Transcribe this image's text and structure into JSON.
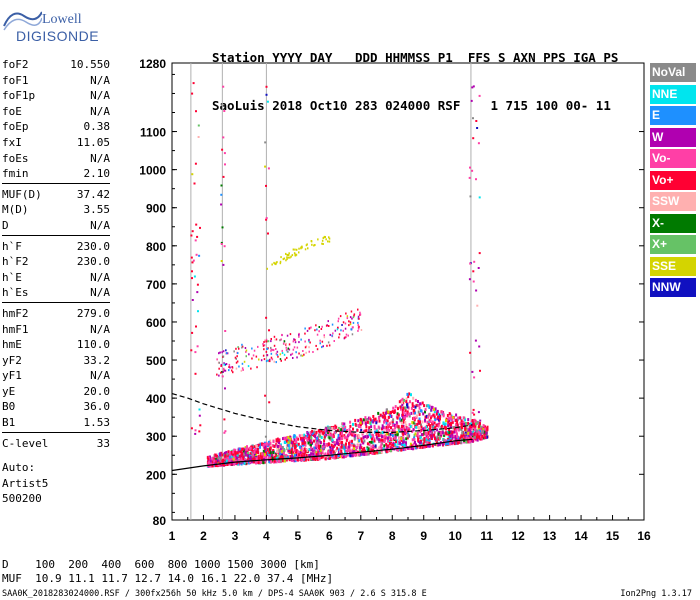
{
  "logo": {
    "line1": "Lowell",
    "line2": "DIGISONDE"
  },
  "header": {
    "line1": "Station YYYY DAY   DDD HHMMSS P1  FFS S AXN PPS IGA PS",
    "line2": "SaoLuis 2018 Oct10 283 024000 RSF    1 715 100 00- 11"
  },
  "params": {
    "groups": [
      [
        {
          "name": "foF2",
          "value": "10.550"
        },
        {
          "name": "foF1",
          "value": "N/A"
        },
        {
          "name": "foF1p",
          "value": "N/A"
        },
        {
          "name": "foE",
          "value": "N/A"
        },
        {
          "name": "foEp",
          "value": "0.38"
        },
        {
          "name": "fxI",
          "value": "11.05"
        },
        {
          "name": "foEs",
          "value": "N/A"
        },
        {
          "name": "fmin",
          "value": "2.10"
        }
      ],
      [
        {
          "name": "MUF(D)",
          "value": "37.42"
        },
        {
          "name": "M(D)",
          "value": "3.55"
        },
        {
          "name": "D",
          "value": "N/A"
        }
      ],
      [
        {
          "name": "h`F",
          "value": "230.0"
        },
        {
          "name": "h`F2",
          "value": "230.0"
        },
        {
          "name": "h`E",
          "value": "N/A"
        },
        {
          "name": "h`Es",
          "value": "N/A"
        }
      ],
      [
        {
          "name": "hmF2",
          "value": "279.0"
        },
        {
          "name": "hmF1",
          "value": "N/A"
        },
        {
          "name": "hmE",
          "value": "110.0"
        },
        {
          "name": "yF2",
          "value": "33.2"
        },
        {
          "name": "yF1",
          "value": "N/A"
        },
        {
          "name": "yE",
          "value": "20.0"
        },
        {
          "name": "B0",
          "value": "36.0"
        },
        {
          "name": "B1",
          "value": "1.53"
        }
      ],
      [
        {
          "name": "C-level",
          "value": "33"
        }
      ]
    ],
    "auto": [
      "Auto:",
      "Artist5",
      "500200"
    ]
  },
  "legend": [
    {
      "label": "NoVal",
      "color": "#8a8a8a"
    },
    {
      "label": "NNE",
      "color": "#00e5ee"
    },
    {
      "label": "E",
      "color": "#1e90ff"
    },
    {
      "label": "W",
      "color": "#b000b0"
    },
    {
      "label": "Vo-",
      "color": "#ff3fa6"
    },
    {
      "label": "Vo+",
      "color": "#ff0033"
    },
    {
      "label": "SSW",
      "color": "#ffb0b0"
    },
    {
      "label": "X-",
      "color": "#007a00"
    },
    {
      "label": "X+",
      "color": "#66c266"
    },
    {
      "label": "SSE",
      "color": "#d4d400"
    },
    {
      "label": "NNW",
      "color": "#1010c0"
    }
  ],
  "footer": {
    "d_line": "D    100  200  400  600  800 1000 1500 3000 [km]",
    "muf_line": "MUF  10.9 11.1 11.7 12.7 14.0 16.1 22.0 37.4 [MHz]",
    "file_line": "SAA0K_2018283024000.RSF / 300fx256h 50 kHz 5.0 km / DPS-4 SAA0K 903 / 2.6 S 315.8 E",
    "version": "Ion2Png 1.3.17"
  },
  "chart_data": {
    "type": "scatter",
    "title": "",
    "xlabel": "",
    "ylabel": "",
    "xlim": [
      1,
      16
    ],
    "ylim": [
      80,
      1280
    ],
    "x_ticks": [
      1,
      2,
      3,
      4,
      5,
      6,
      7,
      8,
      9,
      10,
      11,
      12,
      13,
      14,
      15,
      16
    ],
    "x_tick_labels": [
      "1",
      "2",
      "3",
      "4",
      "5",
      "6",
      "7",
      "8",
      "9",
      "10",
      "11",
      "12",
      "13",
      "14",
      "15",
      "16"
    ],
    "y_ticks": [
      80,
      200,
      300,
      400,
      500,
      600,
      700,
      800,
      900,
      1000,
      1100,
      1280
    ],
    "y_tick_labels": [
      "80",
      "200",
      "300",
      "400",
      "500",
      "600",
      "700",
      "800",
      "900",
      "1000",
      "1100",
      "1280"
    ],
    "vertical_grid": [
      1.6,
      2.6,
      4.0,
      10.5
    ],
    "grid": true,
    "traces": [
      {
        "name": "F2 trace",
        "kind": "band",
        "x": [
          2.1,
          3.0,
          4.0,
          5.0,
          6.0,
          7.0,
          8.0,
          8.5,
          9.0,
          9.5,
          10.0,
          10.5,
          11.0
        ],
        "y_low": [
          225,
          230,
          235,
          240,
          245,
          255,
          265,
          270,
          275,
          280,
          285,
          290,
          300
        ],
        "y_high": [
          250,
          270,
          290,
          310,
          330,
          350,
          380,
          420,
          390,
          370,
          360,
          350,
          330
        ]
      },
      {
        "name": "second hop",
        "kind": "band",
        "x": [
          2.4,
          3.0,
          4.0,
          5.0,
          6.0,
          7.0
        ],
        "y_low": [
          460,
          470,
          490,
          510,
          540,
          580
        ],
        "y_high": [
          520,
          540,
          560,
          580,
          610,
          640
        ]
      },
      {
        "name": "third hop",
        "kind": "band",
        "x": [
          4.0,
          4.5,
          5.0,
          5.5,
          6.0
        ],
        "y_low": [
          740,
          760,
          780,
          800,
          810
        ],
        "y_high": [
          760,
          780,
          800,
          820,
          830
        ]
      }
    ],
    "profile_lines": [
      {
        "name": "solid",
        "style": "solid",
        "x": [
          1.0,
          2.0,
          3.0,
          4.0,
          5.0,
          6.0,
          7.0,
          8.0,
          9.0,
          10.0,
          10.55
        ],
        "y": [
          210,
          222,
          232,
          238,
          243,
          250,
          258,
          266,
          276,
          288,
          292
        ]
      },
      {
        "name": "dashed",
        "style": "dashed",
        "x": [
          1.0,
          1.5,
          2.0,
          3.0,
          4.0,
          5.0,
          6.0,
          7.0,
          8.0,
          9.0,
          10.0,
          10.55
        ],
        "y": [
          412,
          400,
          385,
          360,
          340,
          325,
          315,
          310,
          310,
          315,
          322,
          330
        ]
      }
    ],
    "legend_position": "right"
  }
}
